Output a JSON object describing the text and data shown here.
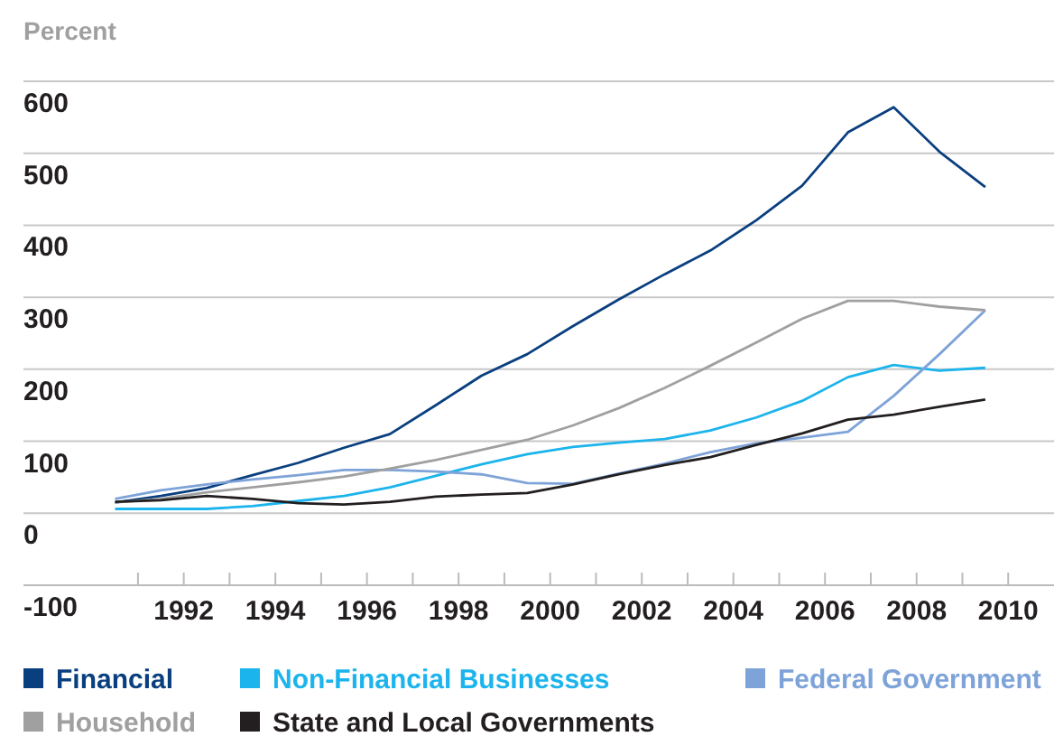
{
  "chart_data": {
    "type": "line",
    "ylabel": "Percent",
    "x": [
      1990.5,
      1991.5,
      1992.5,
      1993.5,
      1994.5,
      1995.5,
      1996.5,
      1997.5,
      1998.5,
      1999.5,
      2000.5,
      2001.5,
      2002.5,
      2003.5,
      2004.5,
      2005.5,
      2006.5,
      2007.5,
      2008.5,
      2009.5
    ],
    "series": [
      {
        "name": "Financial",
        "color": "#0a3f7f",
        "values": [
          15,
          24,
          35,
          53,
          70,
          91,
          110,
          150,
          191,
          221,
          260,
          297,
          332,
          365,
          407,
          455,
          529,
          564,
          502,
          453
        ]
      },
      {
        "name": "Non-Financial Businesses",
        "color": "#1cb4ec",
        "values": [
          6,
          6,
          6,
          10,
          17,
          24,
          36,
          52,
          68,
          82,
          92,
          98,
          103,
          115,
          133,
          156,
          189,
          206,
          198,
          202
        ]
      },
      {
        "name": "Federal Government",
        "color": "#7ea3d8",
        "values": [
          20,
          32,
          40,
          47,
          53,
          60,
          60,
          58,
          54,
          42,
          41,
          55,
          69,
          85,
          97,
          105,
          113,
          163,
          221,
          282
        ]
      },
      {
        "name": "Household",
        "color": "#a0a0a0",
        "values": [
          15,
          20,
          29,
          36,
          43,
          51,
          62,
          74,
          88,
          102,
          122,
          146,
          174,
          205,
          237,
          270,
          295,
          295,
          287,
          282
        ]
      },
      {
        "name": "State and Local Governments",
        "color": "#231f20",
        "values": [
          16,
          18,
          24,
          20,
          14,
          12,
          16,
          23,
          26,
          28,
          40,
          54,
          67,
          78,
          95,
          111,
          130,
          137,
          148,
          158
        ]
      }
    ],
    "xlim": [
      1988.5,
      2011
    ],
    "xticks": [
      {
        "value": 1991,
        "label": null
      },
      1992,
      {
        "value": 1993,
        "label": null
      },
      1994,
      {
        "value": 1995,
        "label": null
      },
      1996,
      {
        "value": 1997,
        "label": null
      },
      1998,
      {
        "value": 1999,
        "label": null
      },
      2000,
      {
        "value": 2001,
        "label": null
      },
      2002,
      {
        "value": 2003,
        "label": null
      },
      2004,
      {
        "value": 2005,
        "label": null
      },
      2006,
      {
        "value": 2007,
        "label": null
      },
      2008,
      {
        "value": 2009,
        "label": null
      },
      2010
    ],
    "ylim": [
      -100,
      600
    ],
    "yticks": [
      -100,
      0,
      100,
      200,
      300,
      400,
      500,
      600
    ],
    "grid": "y",
    "legend": "bottom",
    "marker": "none",
    "line_style": "solid"
  }
}
